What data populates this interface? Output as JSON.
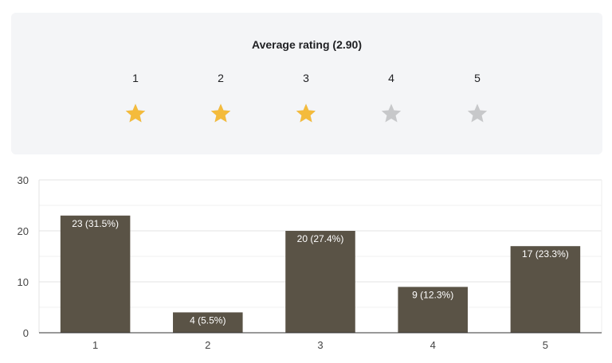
{
  "summary": {
    "title": "Average rating (2.90)",
    "average": 2.9,
    "max_rating": 5,
    "star_labels": [
      "1",
      "2",
      "3",
      "4",
      "5"
    ],
    "filled_color": "#f4bb3c",
    "empty_color": "#c7c8ca"
  },
  "chart_data": {
    "type": "bar",
    "categories": [
      "1",
      "2",
      "3",
      "4",
      "5"
    ],
    "values": [
      23,
      4,
      20,
      9,
      17
    ],
    "data_labels": [
      "23 (31.5%)",
      "4 (5.5%)",
      "20 (27.4%)",
      "9 (12.3%)",
      "17 (23.3%)"
    ],
    "y_ticks": [
      0,
      10,
      20,
      30
    ],
    "ylim": [
      0,
      30
    ],
    "grid": true,
    "bar_color": "#5a5346",
    "label_color": "#ffffff"
  }
}
